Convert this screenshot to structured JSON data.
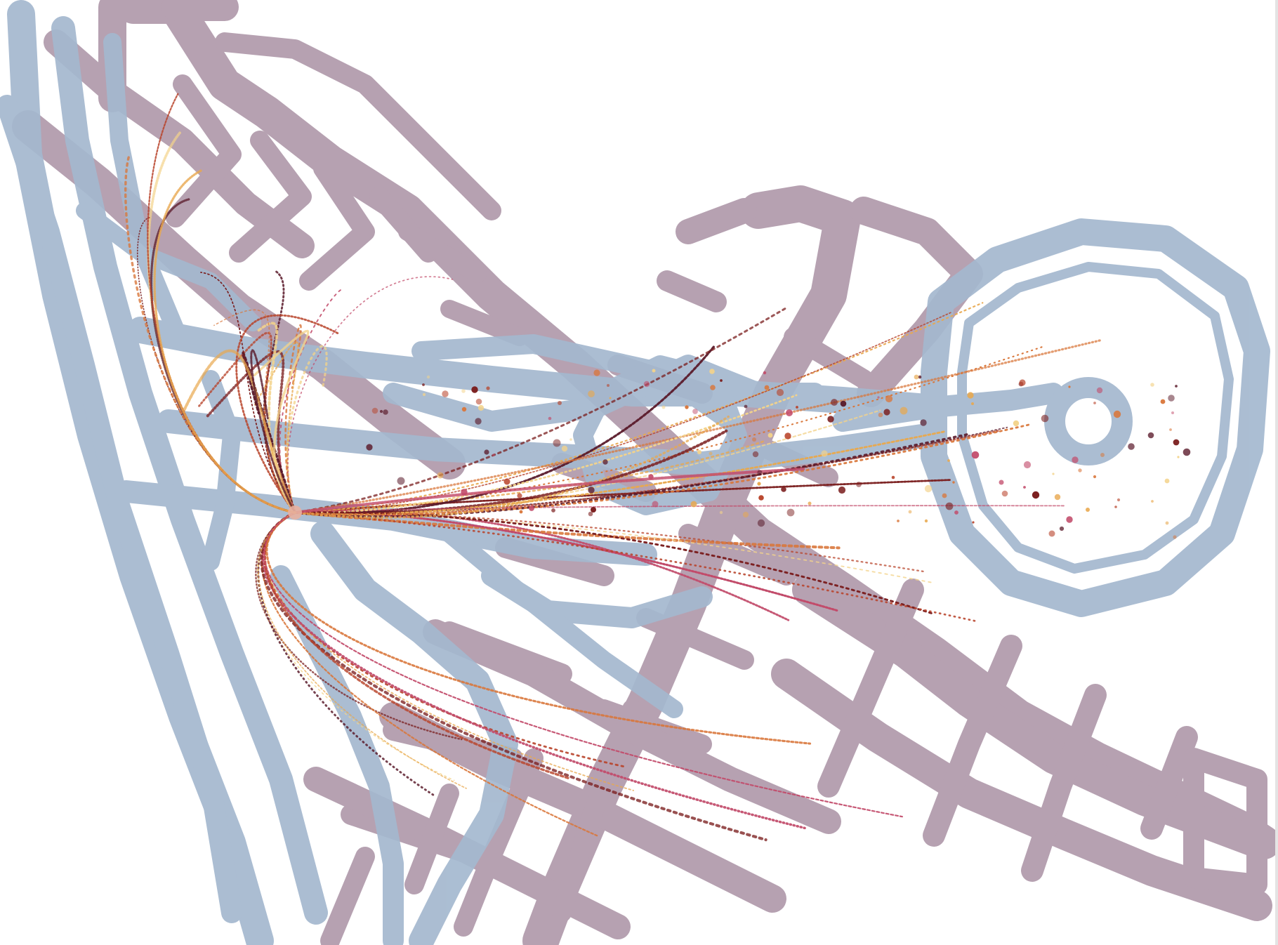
{
  "artwork": {
    "background_color": "#ffffff",
    "layers": {
      "road_network_purple": {
        "color": "#b09aab",
        "opacity": 0.9
      },
      "road_network_blue": {
        "color": "#a4b8cf",
        "opacity": 0.9
      },
      "particle_tracks": {
        "colors": [
          "#7a1d1d",
          "#b8432a",
          "#d9763a",
          "#e8a84f",
          "#c24b6a",
          "#f3d38a",
          "#5a1a2a"
        ],
        "track_count_visible": 60
      }
    },
    "icons": {
      "map_overlay": "road-map-shape",
      "tracks": "particle-collision-tracks"
    }
  }
}
